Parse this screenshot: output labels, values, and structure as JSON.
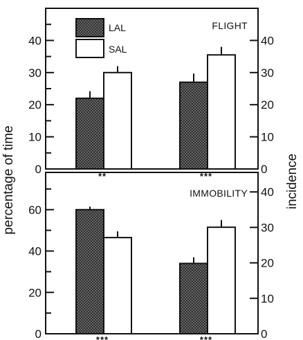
{
  "figure": {
    "ylabel_left": "percentage of time",
    "ylabel_right": "incidence"
  },
  "legend": [
    {
      "label": "LAL",
      "pattern": "crosshatch"
    },
    {
      "label": "SAL",
      "pattern": "open"
    }
  ],
  "colors": {
    "ink": "#111111",
    "hatch_fill": "#6a6a6a",
    "open_fill": "#ffffff"
  },
  "chart_data": [
    {
      "type": "bar",
      "title": "FLIGHT",
      "categories": [
        "",
        ""
      ],
      "series": [
        {
          "name": "LAL",
          "values": [
            22,
            27
          ],
          "errors": [
            2.2,
            2.7
          ]
        },
        {
          "name": "SAL",
          "values": [
            30,
            35.5
          ],
          "errors": [
            2.0,
            2.5
          ]
        }
      ],
      "ylim": [
        0,
        50
      ],
      "left_ticks": [
        0,
        10,
        20,
        30,
        40
      ],
      "right_ticks": [
        0,
        10,
        20,
        30,
        40
      ],
      "right_axis_range": [
        0,
        50
      ],
      "significance": [
        "**",
        "***"
      ],
      "grid": false
    },
    {
      "type": "bar",
      "title": "IMMOBILITY",
      "categories": [
        "",
        ""
      ],
      "series": [
        {
          "name": "LAL",
          "values": [
            60,
            34
          ],
          "errors": [
            1.5,
            3.0
          ]
        },
        {
          "name": "SAL",
          "values": [
            46.5,
            51.5
          ],
          "errors": [
            3.0,
            3.5
          ]
        }
      ],
      "ylim": [
        0,
        78
      ],
      "left_ticks": [
        0,
        20,
        40,
        60
      ],
      "right_ticks": [
        0,
        10,
        20,
        30,
        40
      ],
      "right_axis_range": [
        0,
        45.5
      ],
      "significance": [
        "***",
        "***"
      ],
      "grid": false
    }
  ]
}
